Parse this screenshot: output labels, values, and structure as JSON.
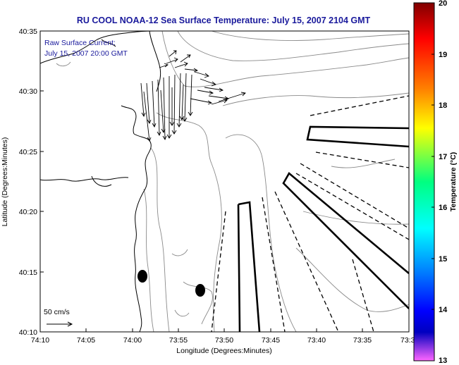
{
  "title": "RU COOL  NOAA-12  Sea Surface Temperature:  July 15, 2007 2104 GMT",
  "current_annotation": {
    "line1": "Raw Surface Current:",
    "line2": "July 15, 2007 20:00 GMT"
  },
  "scale_label": "50 cm/s",
  "x_axis": {
    "label": "Longitude (Degrees:Minutes)",
    "ticks": [
      "74:10",
      "74:05",
      "74:00",
      "73:55",
      "73:50",
      "73:45",
      "73:40",
      "73:35",
      "73:3"
    ]
  },
  "y_axis": {
    "label": "Latitude (Degrees:Minutes)",
    "ticks": [
      "40:35",
      "40:30",
      "40:25",
      "40:20",
      "40:15",
      "40:10"
    ]
  },
  "colorbar": {
    "label": "Temperature (°C)",
    "ticks": [
      "20",
      "19",
      "18",
      "17",
      "16",
      "15",
      "14",
      "13"
    ],
    "colors": [
      "#800000",
      "#ff0000",
      "#ff8000",
      "#ffff00",
      "#00ff80",
      "#00ffff",
      "#0080ff",
      "#0000ff",
      "#0000c0",
      "#ff66ff"
    ]
  },
  "markers": {
    "color": "#000000",
    "count": 2
  },
  "colors": {
    "title_text": "#1a1a9c",
    "contour": "#8a8a8a",
    "coastline": "#000000"
  }
}
